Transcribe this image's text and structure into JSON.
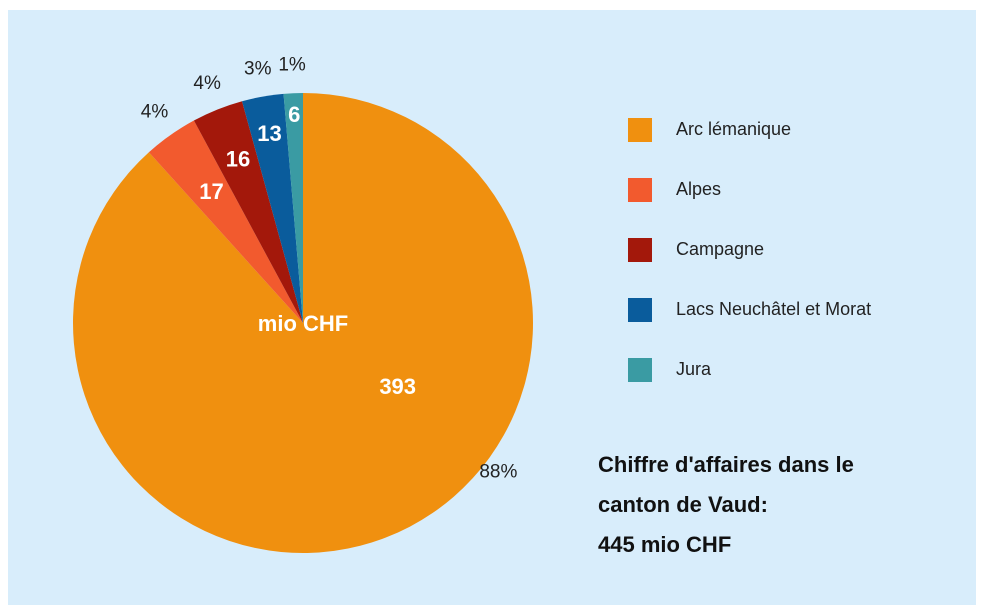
{
  "chart_data": {
    "type": "pie",
    "categories": [
      "Arc lémanique",
      "Alpes",
      "Campagne",
      "Lacs Neuchâtel et Morat",
      "Jura"
    ],
    "values": [
      393,
      17,
      16,
      13,
      6
    ],
    "percent_labels": [
      "88%",
      "4%",
      "4%",
      "3%",
      "1%"
    ],
    "colors": [
      "#f0900f",
      "#f25a2e",
      "#a3180b",
      "#0a5c9c",
      "#3a9ba3"
    ],
    "center_label": "mio CHF",
    "note": [
      "Chiffre d'affaires dans le",
      "canton de Vaud:",
      "445 mio CHF"
    ]
  }
}
